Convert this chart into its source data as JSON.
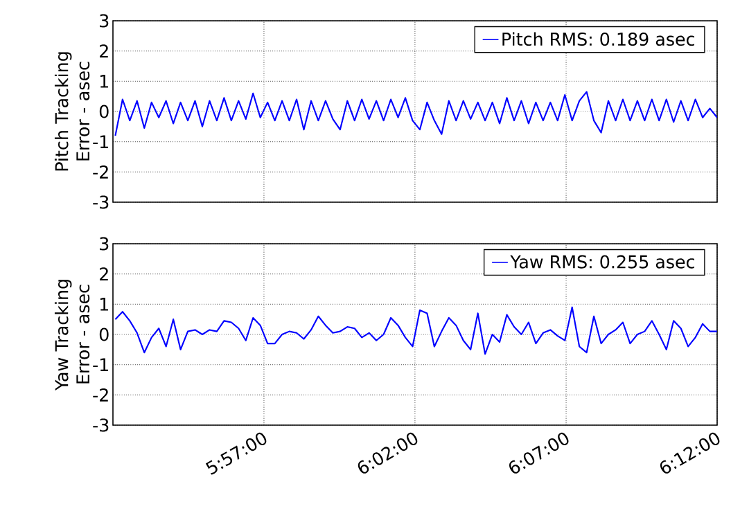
{
  "chart_data": [
    {
      "type": "line",
      "ylabel": "Pitch Tracking Error - asec",
      "xlim": [
        5.8667,
        6.2
      ],
      "ylim": [
        -3,
        3
      ],
      "xticks": [
        {
          "value": 5.95,
          "label": null
        },
        {
          "value": 6.0333,
          "label": null
        },
        {
          "value": 6.1167,
          "label": null
        },
        {
          "value": 6.2,
          "label": null
        }
      ],
      "yticks": [
        -3,
        -2,
        -1,
        0,
        1,
        2,
        3
      ],
      "tick_labels": "y",
      "grid": true,
      "legend": "top right",
      "marker": "none",
      "line_style": "solid",
      "x": [
        5.868,
        5.872,
        5.876,
        5.88,
        5.884,
        5.888,
        5.892,
        5.896,
        5.9,
        5.904,
        5.908,
        5.912,
        5.916,
        5.92,
        5.924,
        5.928,
        5.932,
        5.936,
        5.94,
        5.944,
        5.948,
        5.952,
        5.956,
        5.96,
        5.964,
        5.968,
        5.972,
        5.976,
        5.98,
        5.984,
        5.988,
        5.992,
        5.996,
        6.0,
        6.004,
        6.008,
        6.012,
        6.016,
        6.02,
        6.024,
        6.028,
        6.032,
        6.036,
        6.04,
        6.044,
        6.048,
        6.052,
        6.056,
        6.06,
        6.064,
        6.068,
        6.072,
        6.076,
        6.08,
        6.084,
        6.088,
        6.092,
        6.096,
        6.1,
        6.104,
        6.108,
        6.112,
        6.116,
        6.12,
        6.124,
        6.128,
        6.132,
        6.136,
        6.14,
        6.144,
        6.148,
        6.152,
        6.156,
        6.16,
        6.164,
        6.168,
        6.172,
        6.176,
        6.18,
        6.184,
        6.188,
        6.192,
        6.196,
        6.2
      ],
      "series": [
        {
          "name": "Pitch RMS: 0.189 asec",
          "color": "#0000ff",
          "values": [
            -0.8,
            0.4,
            -0.3,
            0.35,
            -0.55,
            0.3,
            -0.2,
            0.35,
            -0.4,
            0.3,
            -0.3,
            0.35,
            -0.5,
            0.35,
            -0.3,
            0.45,
            -0.3,
            0.35,
            -0.25,
            0.6,
            -0.2,
            0.3,
            -0.3,
            0.35,
            -0.3,
            0.4,
            -0.6,
            0.35,
            -0.3,
            0.35,
            -0.25,
            -0.6,
            0.35,
            -0.3,
            0.4,
            -0.25,
            0.35,
            -0.3,
            0.4,
            -0.2,
            0.45,
            -0.3,
            -0.6,
            0.3,
            -0.3,
            -0.75,
            0.35,
            -0.3,
            0.35,
            -0.25,
            0.3,
            -0.3,
            0.3,
            -0.4,
            0.45,
            -0.3,
            0.35,
            -0.4,
            0.3,
            -0.3,
            0.3,
            -0.3,
            0.55,
            -0.3,
            0.35,
            0.65,
            -0.3,
            -0.7,
            0.35,
            -0.3,
            0.4,
            -0.3,
            0.35,
            -0.3,
            0.4,
            -0.3,
            0.4,
            -0.35,
            0.35,
            -0.3,
            0.4,
            -0.2,
            0.1,
            -0.2
          ]
        }
      ]
    },
    {
      "type": "line",
      "ylabel": "Yaw Tracking Error - asec",
      "xlim": [
        5.8667,
        6.2
      ],
      "ylim": [
        -3,
        3
      ],
      "xticks": [
        {
          "value": 5.95,
          "label": "5:57:00"
        },
        {
          "value": 6.0333,
          "label": "6:02:00"
        },
        {
          "value": 6.1167,
          "label": "6:07:00"
        },
        {
          "value": 6.2,
          "label": "6:12:00"
        }
      ],
      "yticks": [
        -3,
        -2,
        -1,
        0,
        1,
        2,
        3
      ],
      "grid": true,
      "legend": "top right",
      "marker": "none",
      "line_style": "solid",
      "x": [
        5.868,
        5.872,
        5.876,
        5.88,
        5.884,
        5.888,
        5.892,
        5.896,
        5.9,
        5.904,
        5.908,
        5.912,
        5.916,
        5.92,
        5.924,
        5.928,
        5.932,
        5.936,
        5.94,
        5.944,
        5.948,
        5.952,
        5.956,
        5.96,
        5.964,
        5.968,
        5.972,
        5.976,
        5.98,
        5.984,
        5.988,
        5.992,
        5.996,
        6.0,
        6.004,
        6.008,
        6.012,
        6.016,
        6.02,
        6.024,
        6.028,
        6.032,
        6.036,
        6.04,
        6.044,
        6.048,
        6.052,
        6.056,
        6.06,
        6.064,
        6.068,
        6.072,
        6.076,
        6.08,
        6.084,
        6.088,
        6.092,
        6.096,
        6.1,
        6.104,
        6.108,
        6.112,
        6.116,
        6.12,
        6.124,
        6.128,
        6.132,
        6.136,
        6.14,
        6.144,
        6.148,
        6.152,
        6.156,
        6.16,
        6.164,
        6.168,
        6.172,
        6.176,
        6.18,
        6.184,
        6.188,
        6.192,
        6.196,
        6.2
      ],
      "series": [
        {
          "name": "Yaw RMS: 0.255 asec",
          "color": "#0000ff",
          "values": [
            0.5,
            0.75,
            0.45,
            0.05,
            -0.6,
            -0.1,
            0.2,
            -0.4,
            0.5,
            -0.5,
            0.1,
            0.15,
            0.0,
            0.15,
            0.1,
            0.45,
            0.4,
            0.2,
            -0.2,
            0.55,
            0.3,
            -0.3,
            -0.3,
            0.0,
            0.1,
            0.05,
            -0.15,
            0.15,
            0.6,
            0.3,
            0.05,
            0.1,
            0.25,
            0.2,
            -0.1,
            0.05,
            -0.2,
            0.0,
            0.55,
            0.3,
            -0.1,
            -0.4,
            0.8,
            0.7,
            -0.4,
            0.1,
            0.55,
            0.3,
            -0.2,
            -0.5,
            0.7,
            -0.65,
            0.0,
            -0.25,
            0.65,
            0.25,
            0.0,
            0.4,
            -0.3,
            0.05,
            0.15,
            -0.05,
            -0.2,
            0.9,
            -0.4,
            -0.6,
            0.6,
            -0.3,
            0.0,
            0.15,
            0.4,
            -0.3,
            0.0,
            0.1,
            0.45,
            0.0,
            -0.5,
            0.45,
            0.2,
            -0.4,
            -0.1,
            0.35,
            0.1,
            0.1
          ]
        }
      ]
    }
  ]
}
